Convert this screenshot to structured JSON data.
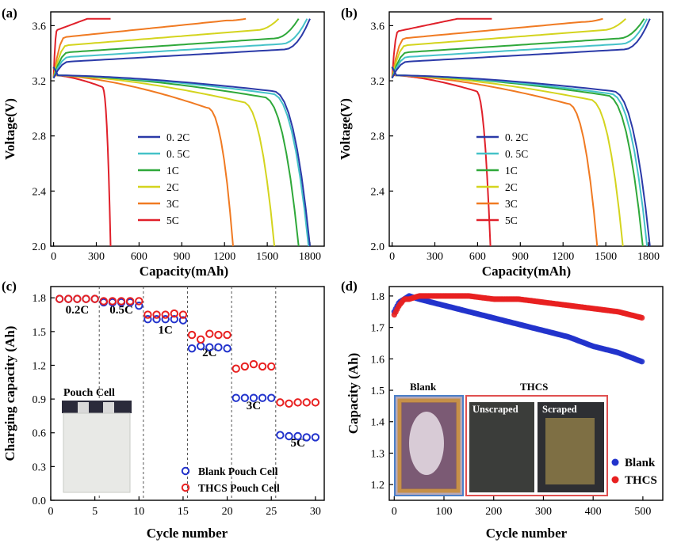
{
  "panels": {
    "a": {
      "label": "(a)",
      "xlabel": "Capacity(mAh)",
      "ylabel": "Voltage(V)",
      "xticks": [
        "0",
        "300",
        "600",
        "900",
        "1200",
        "1500",
        "1800"
      ],
      "yticks": [
        "2.0",
        "2.4",
        "2.8",
        "3.2",
        "3.6"
      ]
    },
    "b": {
      "label": "(b)",
      "xlabel": "Capacity(mAh)",
      "ylabel": "Voltage(V)",
      "xticks": [
        "0",
        "300",
        "600",
        "900",
        "1200",
        "1500",
        "1800"
      ],
      "yticks": [
        "2.0",
        "2.4",
        "2.8",
        "3.2",
        "3.6"
      ]
    },
    "c": {
      "label": "(c)",
      "xlabel": "Cycle number",
      "ylabel": "Charging capacity (Ah)",
      "xticks": [
        "0",
        "5",
        "10",
        "15",
        "20",
        "25",
        "30"
      ],
      "yticks": [
        "0.0",
        "0.3",
        "0.6",
        "0.9",
        "1.2",
        "1.5",
        "1.8"
      ],
      "rate_labels": [
        "0.2C",
        "0.5C",
        "1C",
        "2C",
        "3C",
        "5C"
      ],
      "inset_label": "Pouch Cell",
      "legend": [
        "Blank Pouch Cell",
        "THCS Pouch Cell"
      ]
    },
    "d": {
      "label": "(d)",
      "xlabel": "Cycle number",
      "ylabel": "Capacity (Ah)",
      "xticks": [
        "0",
        "100",
        "200",
        "300",
        "400",
        "500"
      ],
      "yticks": [
        "1.2",
        "1.3",
        "1.4",
        "1.5",
        "1.6",
        "1.7",
        "1.8"
      ],
      "inset_blank": "Blank",
      "inset_thcs": "THCS",
      "inset_unscraped": "Unscraped",
      "inset_scraped": "Scraped",
      "legend": [
        "Blank",
        "THCS"
      ]
    }
  },
  "colors": {
    "0.2C": "#2b3aa8",
    "0.5C": "#45c2c8",
    "1C": "#2fa83a",
    "2C": "#d4d41e",
    "3C": "#f07a22",
    "5C": "#e0202a",
    "blank": "#2233cc",
    "thcs": "#e82020"
  },
  "chart_data": [
    {
      "id": "a",
      "type": "line",
      "title": "",
      "xlabel": "Capacity(mAh)",
      "ylabel": "Voltage(V)",
      "xlim": [
        -20,
        1900
      ],
      "ylim": [
        2.0,
        3.7
      ],
      "series": [
        {
          "name": "0.2C",
          "charge_end": 1800,
          "charge_end_v": 3.65,
          "charge_plateau_v": 3.36,
          "discharge_end": 1800,
          "discharge_knee_v": 3.05
        },
        {
          "name": "0.5C",
          "charge_end": 1780,
          "charge_end_v": 3.65,
          "charge_plateau_v": 3.4,
          "discharge_end": 1790,
          "discharge_knee_v": 3.02
        },
        {
          "name": "1C",
          "charge_end": 1720,
          "charge_end_v": 3.65,
          "charge_plateau_v": 3.44,
          "discharge_end": 1720,
          "discharge_knee_v": 2.98
        },
        {
          "name": "2C",
          "charge_end": 1580,
          "charge_end_v": 3.65,
          "charge_plateau_v": 3.5,
          "discharge_end": 1550,
          "discharge_knee_v": 2.92
        },
        {
          "name": "3C",
          "charge_end": 1350,
          "charge_end_v": 3.65,
          "charge_plateau_v": 3.57,
          "discharge_end": 1260,
          "discharge_knee_v": 2.85
        },
        {
          "name": "5C",
          "charge_end": 400,
          "charge_end_v": 3.65,
          "charge_plateau_v": 3.63,
          "discharge_end": 400,
          "discharge_knee_v": 3.1
        }
      ]
    },
    {
      "id": "b",
      "type": "line",
      "title": "",
      "xlabel": "Capacity(mAh)",
      "ylabel": "Voltage(V)",
      "xlim": [
        -20,
        1900
      ],
      "ylim": [
        2.0,
        3.7
      ],
      "series": [
        {
          "name": "0.2C",
          "charge_end": 1810,
          "charge_end_v": 3.65,
          "charge_plateau_v": 3.36,
          "discharge_end": 1810,
          "discharge_knee_v": 3.05
        },
        {
          "name": "0.5C",
          "charge_end": 1790,
          "charge_end_v": 3.65,
          "charge_plateau_v": 3.4,
          "discharge_end": 1790,
          "discharge_knee_v": 3.02
        },
        {
          "name": "1C",
          "charge_end": 1770,
          "charge_end_v": 3.65,
          "charge_plateau_v": 3.44,
          "discharge_end": 1760,
          "discharge_knee_v": 3.0
        },
        {
          "name": "2C",
          "charge_end": 1640,
          "charge_end_v": 3.65,
          "charge_plateau_v": 3.5,
          "discharge_end": 1620,
          "discharge_knee_v": 2.95
        },
        {
          "name": "3C",
          "charge_end": 1480,
          "charge_end_v": 3.65,
          "charge_plateau_v": 3.56,
          "discharge_end": 1440,
          "discharge_knee_v": 2.9
        },
        {
          "name": "5C",
          "charge_end": 700,
          "charge_end_v": 3.65,
          "charge_plateau_v": 3.62,
          "discharge_end": 690,
          "discharge_knee_v": 3.05
        }
      ]
    },
    {
      "id": "c",
      "type": "scatter",
      "title": "",
      "xlabel": "Cycle number",
      "ylabel": "Charging capacity (Ah)",
      "xlim": [
        0,
        31
      ],
      "ylim": [
        0,
        1.9
      ],
      "separators": [
        5.5,
        10.5,
        15.5,
        20.5,
        25.5
      ],
      "series": [
        {
          "name": "Blank Pouch Cell",
          "x": [
            1,
            2,
            3,
            4,
            5,
            6,
            7,
            8,
            9,
            10,
            11,
            12,
            13,
            14,
            15,
            16,
            17,
            18,
            19,
            20,
            21,
            22,
            23,
            24,
            25,
            26,
            27,
            28,
            29,
            30
          ],
          "values": [
            1.79,
            1.79,
            1.79,
            1.79,
            1.79,
            1.76,
            1.76,
            1.76,
            1.76,
            1.73,
            1.61,
            1.61,
            1.61,
            1.61,
            1.6,
            1.35,
            1.37,
            1.36,
            1.36,
            1.35,
            0.91,
            0.91,
            0.91,
            0.91,
            0.91,
            0.58,
            0.57,
            0.57,
            0.56,
            0.56
          ]
        },
        {
          "name": "THCS Pouch Cell",
          "x": [
            1,
            2,
            3,
            4,
            5,
            6,
            7,
            8,
            9,
            10,
            11,
            12,
            13,
            14,
            15,
            16,
            17,
            18,
            19,
            20,
            21,
            22,
            23,
            24,
            25,
            26,
            27,
            28,
            29,
            30
          ],
          "values": [
            1.79,
            1.79,
            1.79,
            1.79,
            1.79,
            1.77,
            1.77,
            1.77,
            1.77,
            1.77,
            1.65,
            1.65,
            1.65,
            1.66,
            1.65,
            1.47,
            1.43,
            1.48,
            1.47,
            1.47,
            1.17,
            1.19,
            1.21,
            1.19,
            1.19,
            0.87,
            0.86,
            0.87,
            0.87,
            0.87
          ]
        }
      ]
    },
    {
      "id": "d",
      "type": "scatter",
      "title": "",
      "xlabel": "Cycle number",
      "ylabel": "Capacity (Ah)",
      "xlim": [
        -10,
        540
      ],
      "ylim": [
        1.15,
        1.83
      ],
      "series": [
        {
          "name": "Blank",
          "x": [
            0,
            10,
            20,
            30,
            50,
            75,
            100,
            150,
            200,
            250,
            300,
            350,
            400,
            450,
            500
          ],
          "values": [
            1.75,
            1.78,
            1.79,
            1.8,
            1.79,
            1.78,
            1.77,
            1.75,
            1.73,
            1.71,
            1.69,
            1.67,
            1.64,
            1.62,
            1.59
          ]
        },
        {
          "name": "THCS",
          "x": [
            0,
            10,
            20,
            30,
            50,
            75,
            100,
            150,
            200,
            250,
            300,
            350,
            400,
            450,
            500
          ],
          "values": [
            1.74,
            1.77,
            1.79,
            1.79,
            1.8,
            1.8,
            1.8,
            1.8,
            1.79,
            1.79,
            1.78,
            1.77,
            1.76,
            1.75,
            1.73
          ]
        }
      ]
    }
  ]
}
